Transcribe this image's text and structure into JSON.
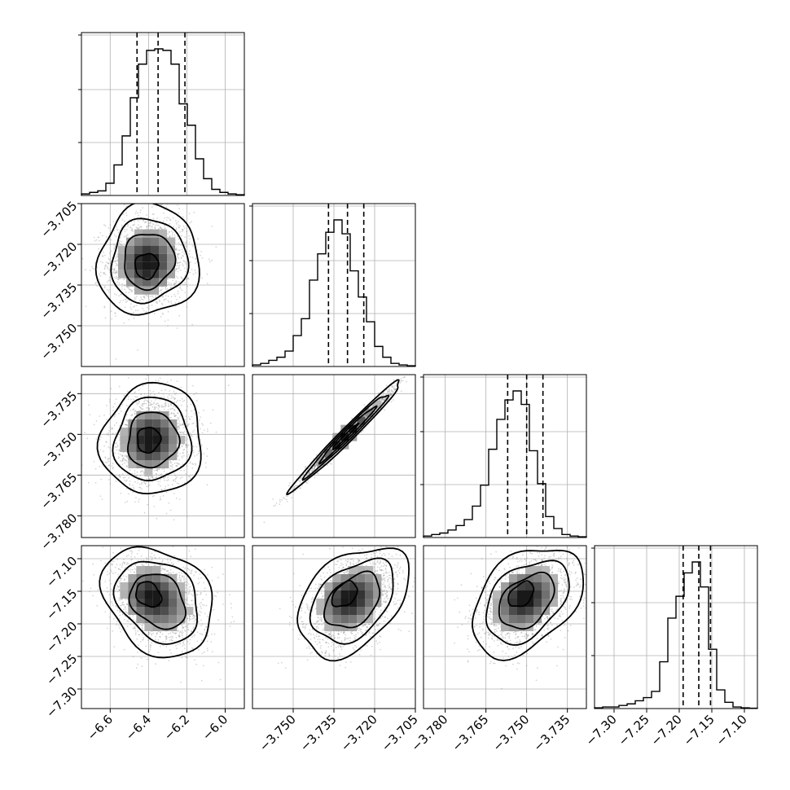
{
  "chart_data": {
    "type": "corner",
    "grid": true,
    "parameters": [
      {
        "range": [
          -6.75,
          -5.9
        ],
        "ticks": [
          -6.6,
          -6.4,
          -6.2,
          -6.0
        ],
        "tick_labels": [
          "−6.6",
          "−6.4",
          "−6.2",
          "−6.0"
        ],
        "quantiles": [
          -6.46,
          -6.35,
          -6.21
        ],
        "hist": [
          0.01,
          0.02,
          0.03,
          0.08,
          0.2,
          0.39,
          0.64,
          0.86,
          0.95,
          0.96,
          0.95,
          0.86,
          0.6,
          0.46,
          0.24,
          0.11,
          0.04,
          0.02,
          0.01,
          0.005
        ]
      },
      {
        "range": [
          -3.765,
          -3.705
        ],
        "ticks": [
          -3.75,
          -3.735,
          -3.72,
          -3.705
        ],
        "tick_labels": [
          "−3.750",
          "−3.735",
          "−3.720",
          "−3.705"
        ],
        "quantiles": [
          -3.737,
          -3.73,
          -3.724
        ],
        "hist": [
          0.01,
          0.02,
          0.04,
          0.06,
          0.1,
          0.2,
          0.31,
          0.56,
          0.73,
          0.87,
          0.95,
          0.86,
          0.62,
          0.45,
          0.29,
          0.13,
          0.06,
          0.02,
          0.01,
          0.005
        ]
      },
      {
        "range": [
          -3.788,
          -3.728
        ],
        "ticks": [
          -3.78,
          -3.765,
          -3.75,
          -3.735
        ],
        "tick_labels": [
          "−3.780",
          "−3.765",
          "−3.750",
          "−3.735"
        ],
        "quantiles": [
          -3.757,
          -3.75,
          -3.744
        ],
        "hist": [
          0.01,
          0.02,
          0.03,
          0.05,
          0.08,
          0.12,
          0.21,
          0.35,
          0.59,
          0.79,
          0.92,
          0.98,
          0.89,
          0.58,
          0.36,
          0.14,
          0.06,
          0.02,
          0.01,
          0.005
        ]
      },
      {
        "range": [
          -7.33,
          -7.08
        ],
        "ticks": [
          -7.3,
          -7.25,
          -7.2,
          -7.15,
          -7.1
        ],
        "tick_labels": [
          "−7.30",
          "−7.25",
          "−7.20",
          "−7.15",
          "−7.10"
        ],
        "quantiles": [
          -7.194,
          -7.17,
          -7.152
        ],
        "hist": [
          0.005,
          0.01,
          0.01,
          0.02,
          0.03,
          0.05,
          0.07,
          0.11,
          0.3,
          0.58,
          0.72,
          0.87,
          0.94,
          0.78,
          0.38,
          0.12,
          0.04,
          0.01,
          0.005,
          0.002
        ]
      }
    ],
    "pairs": [
      {
        "row": 1,
        "col": 0,
        "center": [
          -6.4,
          -3.726
        ],
        "sigma": [
          0.11,
          0.0085
        ],
        "rho": 0.05,
        "peak": [
          -6.41,
          -3.728
        ]
      },
      {
        "row": 2,
        "col": 0,
        "center": [
          -6.38,
          -3.752
        ],
        "sigma": [
          0.11,
          0.0085
        ],
        "rho": 0.05,
        "peak": [
          -6.4,
          -3.752
        ]
      },
      {
        "row": 2,
        "col": 1,
        "center": [
          -3.73,
          -3.75
        ],
        "sigma": [
          0.0085,
          0.0085
        ],
        "rho": 0.985,
        "peak": [
          -3.731,
          -3.751
        ]
      },
      {
        "row": 3,
        "col": 0,
        "center": [
          -6.35,
          -7.165
        ],
        "sigma": [
          0.12,
          0.035
        ],
        "rho": -0.25,
        "peak": [
          -6.4,
          -7.155
        ]
      },
      {
        "row": 3,
        "col": 1,
        "center": [
          -3.728,
          -7.165
        ],
        "sigma": [
          0.0085,
          0.035
        ],
        "rho": 0.4,
        "peak": [
          -3.731,
          -7.155
        ]
      },
      {
        "row": 3,
        "col": 2,
        "center": [
          -3.75,
          -7.165
        ],
        "sigma": [
          0.0085,
          0.035
        ],
        "rho": 0.4,
        "peak": [
          -3.752,
          -7.155
        ]
      }
    ]
  }
}
